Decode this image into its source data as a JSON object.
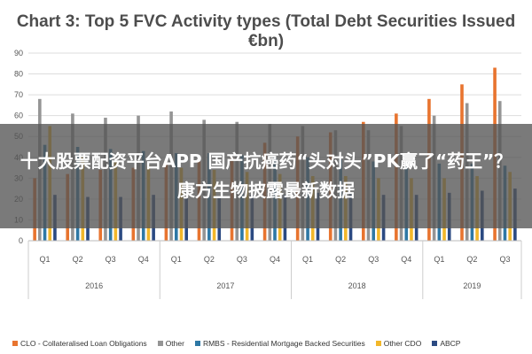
{
  "colors": {
    "CLO": "#e8742f",
    "Other": "#959595",
    "RMBS": "#2e78a5",
    "OtherCDO": "#f2b72a",
    "ABCP": "#2b4a82",
    "axis_text": "#555555",
    "grid": "#dddddd"
  },
  "overlay": {
    "text": "十大股票配资平台APP 国产抗癌药“头对头”PK赢了“药王”？康方生物披露最新数据"
  },
  "chart_data": {
    "type": "bar",
    "title": "Chart 3: Top 5 FVC Activity types (Total Debt Securities Issued €bn)",
    "ylim": [
      0,
      90
    ],
    "yticks": [
      0,
      10,
      20,
      30,
      40,
      50,
      60,
      70,
      80,
      90
    ],
    "grid": true,
    "legend_position": "bottom",
    "categories": [
      "Q1",
      "Q2",
      "Q3",
      "Q4",
      "Q1",
      "Q2",
      "Q3",
      "Q4",
      "Q1",
      "Q2",
      "Q3",
      "Q4",
      "Q1",
      "Q2",
      "Q3"
    ],
    "groups": [
      {
        "label": "2016",
        "quarters": 4
      },
      {
        "label": "2017",
        "quarters": 4
      },
      {
        "label": "2018",
        "quarters": 4
      },
      {
        "label": "2019",
        "quarters": 3
      }
    ],
    "series": [
      {
        "name": "CLO - Collateralised Loan Obligations",
        "color_key": "CLO",
        "values": [
          30,
          32,
          34,
          35,
          37,
          38,
          40,
          47,
          50,
          52,
          57,
          61,
          68,
          75,
          83
        ]
      },
      {
        "name": "Other",
        "color_key": "Other",
        "values": [
          68,
          61,
          59,
          60,
          62,
          58,
          57,
          56,
          55,
          53,
          53,
          55,
          60,
          66,
          67
        ]
      },
      {
        "name": "RMBS - Residential Mortgage Backed Securities",
        "color_key": "RMBS",
        "values": [
          46,
          45,
          44,
          43,
          42,
          42,
          41,
          40,
          40,
          39,
          38,
          38,
          37,
          37,
          36
        ]
      },
      {
        "name": "Other CDO",
        "color_key": "OtherCDO",
        "values": [
          55,
          40,
          38,
          36,
          35,
          34,
          33,
          32,
          31,
          31,
          30,
          30,
          30,
          31,
          33
        ]
      },
      {
        "name": "ABCP",
        "color_key": "ABCP",
        "values": [
          22,
          21,
          21,
          22,
          21,
          21,
          22,
          22,
          23,
          23,
          22,
          22,
          23,
          24,
          25
        ]
      }
    ]
  }
}
